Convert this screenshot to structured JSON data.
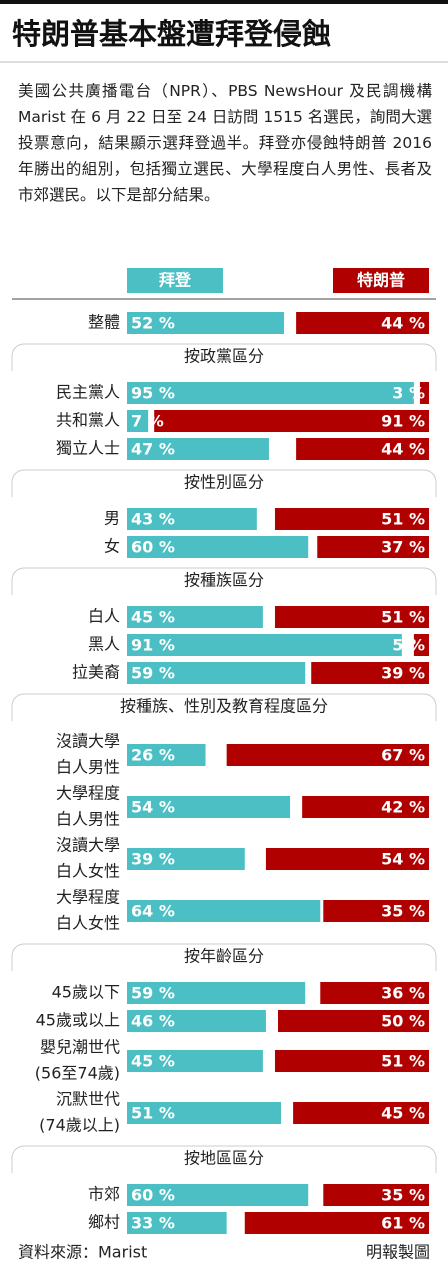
{
  "chart_data": {
    "type": "diverging-bar",
    "title": "特朗普基本盤遭拜登侵蝕",
    "subtitle": "美國公共廣播電台（NPR）、PBS NewsHour 及民調機構 Marist 在 6 月 22 日至 24 日訪問 1515 名選民，詢問大選投票意向，結果顯示選拜登過半。拜登亦侵蝕特朗普 2016 年勝出的組別，包括獨立選民、大學程度白人男性、長者及市郊選民。以下是部分結果。",
    "source": "資料來源：Marist",
    "credit": "明報製圖",
    "xlim": [
      0,
      100
    ],
    "series": [
      {
        "name": "拜登",
        "color": "#4bbfc4"
      },
      {
        "name": "特朗普",
        "color": "#b00000"
      }
    ],
    "groups": [
      {
        "categories": [
          "整體"
        ],
        "series": [
          {
            "values": [
              52
            ],
            "value_labels": [
              "52 %"
            ]
          },
          {
            "values": [
              44
            ],
            "value_labels": [
              "44 %"
            ]
          }
        ]
      },
      {
        "title": "按政黨區分",
        "categories": [
          "民主黨人",
          "共和黨人",
          "獨立人士"
        ],
        "series": [
          {
            "values": [
              95,
              7,
              47
            ],
            "value_labels": [
              "95 %",
              "7 %",
              "47 %"
            ]
          },
          {
            "values": [
              3,
              91,
              44
            ],
            "value_labels": [
              "3 %",
              "91 %",
              "44 %"
            ]
          }
        ]
      },
      {
        "title": "按性別區分",
        "categories": [
          "男",
          "女"
        ],
        "series": [
          {
            "values": [
              43,
              60
            ],
            "value_labels": [
              "43 %",
              "60 %"
            ]
          },
          {
            "values": [
              51,
              37
            ],
            "value_labels": [
              "51 %",
              "37 %"
            ]
          }
        ]
      },
      {
        "title": "按種族區分",
        "categories": [
          "白人",
          "黑人",
          "拉美裔"
        ],
        "series": [
          {
            "values": [
              45,
              91,
              59
            ],
            "value_labels": [
              "45 %",
              "91 %",
              "59 %"
            ]
          },
          {
            "values": [
              51,
              5,
              39
            ],
            "value_labels": [
              "51 %",
              "5 %",
              "39 %"
            ]
          }
        ]
      },
      {
        "title": "按種族、性別及教育程度區分",
        "categories": [
          [
            "沒讀大學",
            "白人男性"
          ],
          [
            "大學程度",
            "白人男性"
          ],
          [
            "沒讀大學",
            "白人女性"
          ],
          [
            "大學程度",
            "白人女性"
          ]
        ],
        "series": [
          {
            "values": [
              26,
              54,
              39,
              64
            ],
            "value_labels": [
              "26 %",
              "54 %",
              "39 %",
              "64 %"
            ]
          },
          {
            "values": [
              67,
              42,
              54,
              35
            ],
            "value_labels": [
              "67 %",
              "42 %",
              "54 %",
              "35 %"
            ]
          }
        ]
      },
      {
        "title": "按年齡區分",
        "categories": [
          "45歲以下",
          "45歲或以上",
          [
            "嬰兒潮世代",
            "(56至74歲)"
          ],
          [
            "沉默世代",
            "(74歲以上)"
          ]
        ],
        "series": [
          {
            "values": [
              59,
              46,
              45,
              51
            ],
            "value_labels": [
              "59 %",
              "46 %",
              "45 %",
              "51 %"
            ]
          },
          {
            "values": [
              36,
              50,
              51,
              45
            ],
            "value_labels": [
              "36 %",
              "50 %",
              "51 %",
              "45 %"
            ]
          }
        ]
      },
      {
        "title": "按地區區分",
        "categories": [
          "市郊",
          "鄉村"
        ],
        "series": [
          {
            "values": [
              60,
              33
            ],
            "value_labels": [
              "60 %",
              "33 %"
            ]
          },
          {
            "values": [
              35,
              61
            ],
            "value_labels": [
              "35 %",
              "61 %"
            ]
          }
        ]
      }
    ]
  }
}
